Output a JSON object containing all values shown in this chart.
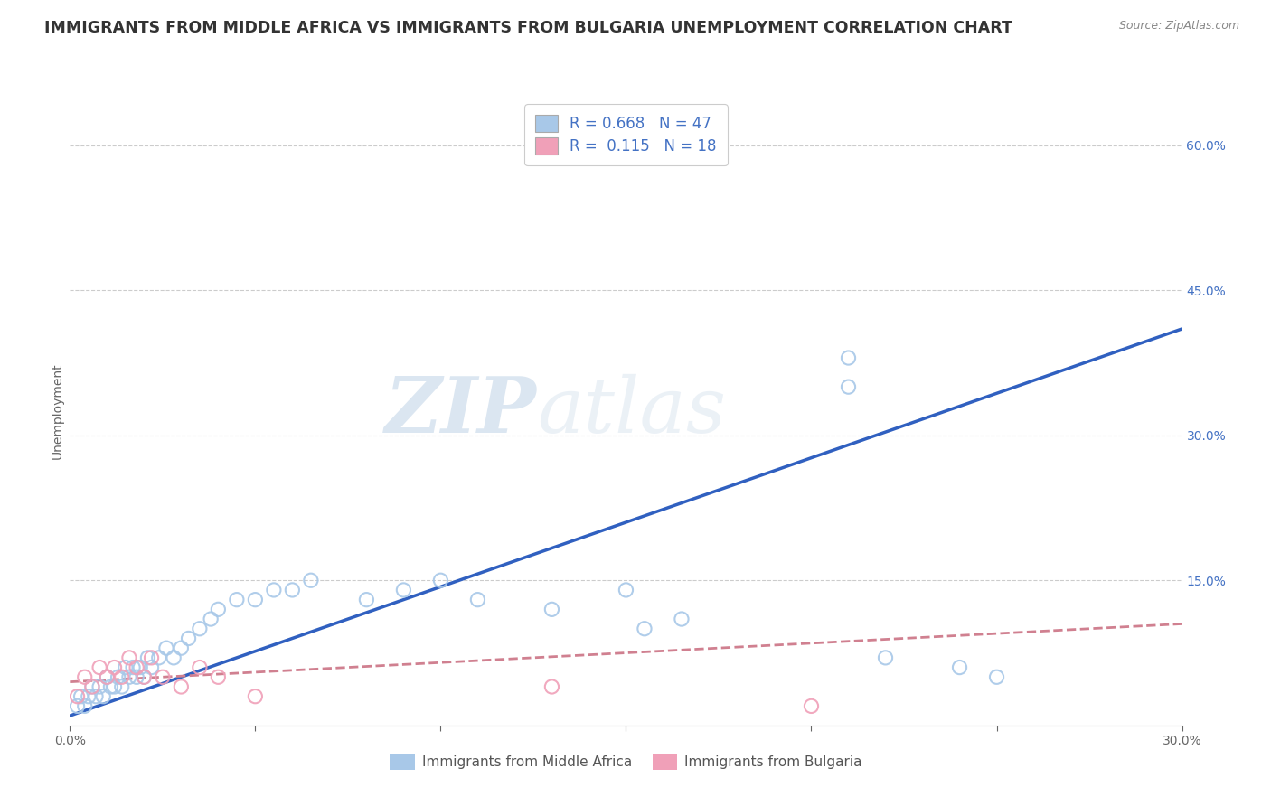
{
  "title": "IMMIGRANTS FROM MIDDLE AFRICA VS IMMIGRANTS FROM BULGARIA UNEMPLOYMENT CORRELATION CHART",
  "source": "Source: ZipAtlas.com",
  "ylabel": "Unemployment",
  "xlim": [
    0,
    0.3
  ],
  "ylim": [
    0,
    0.65
  ],
  "x_ticks": [
    0.0,
    0.05,
    0.1,
    0.15,
    0.2,
    0.25,
    0.3
  ],
  "x_tick_labels": [
    "0.0%",
    "",
    "",
    "",
    "",
    "",
    "30.0%"
  ],
  "y_ticks_right": [
    0.0,
    0.15,
    0.3,
    0.45,
    0.6
  ],
  "y_tick_labels_right": [
    "",
    "15.0%",
    "30.0%",
    "45.0%",
    "60.0%"
  ],
  "legend1_R": "0.668",
  "legend1_N": "47",
  "legend2_R": "0.115",
  "legend2_N": "18",
  "color_blue": "#A8C8E8",
  "color_pink": "#F0A0B8",
  "color_line_blue": "#3060C0",
  "color_line_pink": "#D08090",
  "watermark_ZIP": "ZIP",
  "watermark_atlas": "atlas",
  "legend_labels": [
    "Immigrants from Middle Africa",
    "Immigrants from Bulgaria"
  ],
  "blue_scatter_x": [
    0.002,
    0.003,
    0.004,
    0.005,
    0.006,
    0.007,
    0.008,
    0.009,
    0.01,
    0.011,
    0.012,
    0.013,
    0.014,
    0.015,
    0.016,
    0.017,
    0.018,
    0.019,
    0.02,
    0.021,
    0.022,
    0.024,
    0.026,
    0.028,
    0.03,
    0.032,
    0.035,
    0.038,
    0.04,
    0.045,
    0.05,
    0.055,
    0.06,
    0.065,
    0.08,
    0.09,
    0.1,
    0.11,
    0.13,
    0.15,
    0.155,
    0.165,
    0.21,
    0.22,
    0.24,
    0.21,
    0.25
  ],
  "blue_scatter_y": [
    0.02,
    0.03,
    0.02,
    0.03,
    0.04,
    0.03,
    0.04,
    0.03,
    0.05,
    0.04,
    0.04,
    0.05,
    0.04,
    0.06,
    0.05,
    0.06,
    0.05,
    0.06,
    0.05,
    0.07,
    0.06,
    0.07,
    0.08,
    0.07,
    0.08,
    0.09,
    0.1,
    0.11,
    0.12,
    0.13,
    0.13,
    0.14,
    0.14,
    0.15,
    0.13,
    0.14,
    0.15,
    0.13,
    0.12,
    0.14,
    0.1,
    0.11,
    0.35,
    0.07,
    0.06,
    0.38,
    0.05
  ],
  "pink_scatter_x": [
    0.002,
    0.004,
    0.006,
    0.008,
    0.01,
    0.012,
    0.014,
    0.016,
    0.018,
    0.02,
    0.022,
    0.025,
    0.03,
    0.035,
    0.04,
    0.05,
    0.13,
    0.2
  ],
  "pink_scatter_y": [
    0.03,
    0.05,
    0.04,
    0.06,
    0.05,
    0.06,
    0.05,
    0.07,
    0.06,
    0.05,
    0.07,
    0.05,
    0.04,
    0.06,
    0.05,
    0.03,
    0.04,
    0.02
  ],
  "blue_line_x": [
    0.0,
    0.3
  ],
  "blue_line_y": [
    0.01,
    0.41
  ],
  "pink_line_x": [
    0.0,
    0.3
  ],
  "pink_line_y": [
    0.045,
    0.105
  ],
  "grid_color": "#CCCCCC",
  "title_color": "#333333",
  "title_fontsize": 12.5,
  "axis_label_fontsize": 10,
  "tick_fontsize": 10
}
